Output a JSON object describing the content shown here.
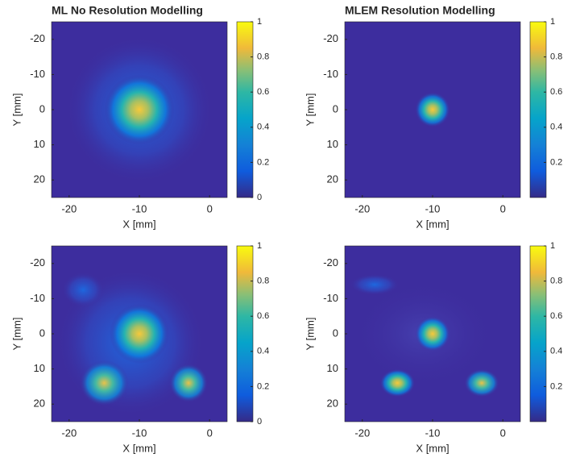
{
  "chart_data": [
    {
      "type": "heatmap",
      "title": "ML No Resolution Modelling",
      "xlabel": "X [mm]",
      "ylabel": "Y [mm]",
      "xlim": [
        -22.5,
        2.5
      ],
      "ylim": [
        -25,
        25
      ],
      "y_reversed": true,
      "xticks": [
        -20,
        -10,
        0
      ],
      "yticks": [
        -20,
        -10,
        0,
        10,
        20
      ],
      "colormap": "parula",
      "clim": [
        0,
        1
      ],
      "colorbar_ticks": [
        0,
        0.2,
        0.4,
        0.6,
        0.8,
        1
      ]
    },
    {
      "type": "heatmap",
      "title": "MLEM Resolution Modelling",
      "xlabel": "X [mm]",
      "ylabel": "Y [mm]",
      "xlim": [
        -22.5,
        2.5
      ],
      "ylim": [
        -25,
        25
      ],
      "y_reversed": true,
      "xticks": [
        -20,
        -10,
        0
      ],
      "yticks": [
        -20,
        -10,
        0,
        10,
        20
      ],
      "colormap": "parula",
      "clim": [
        0,
        1
      ],
      "colorbar_ticks": [
        0.2,
        0.4,
        0.6,
        0.8,
        1
      ]
    },
    {
      "type": "heatmap",
      "xlabel": "X [mm]",
      "ylabel": "Y [mm]",
      "xlim": [
        -22.5,
        2.5
      ],
      "ylim": [
        -25,
        25
      ],
      "y_reversed": true,
      "xticks": [
        -20,
        -10,
        0
      ],
      "yticks": [
        -20,
        -10,
        0,
        10,
        20
      ],
      "colormap": "parula",
      "clim": [
        0,
        1
      ],
      "colorbar_ticks": [
        0,
        0.2,
        0.4,
        0.6,
        0.8,
        1
      ]
    },
    {
      "type": "heatmap",
      "xlabel": "X [mm]",
      "ylabel": "Y [mm]",
      "xlim": [
        -22.5,
        2.5
      ],
      "ylim": [
        -25,
        25
      ],
      "y_reversed": true,
      "xticks": [
        -20,
        -10,
        0
      ],
      "yticks": [
        -20,
        -10,
        0,
        10,
        20
      ],
      "colormap": "parula",
      "clim": [
        0,
        1
      ],
      "colorbar_ticks": [
        0.2,
        0.4,
        0.6,
        0.8,
        1
      ]
    }
  ]
}
